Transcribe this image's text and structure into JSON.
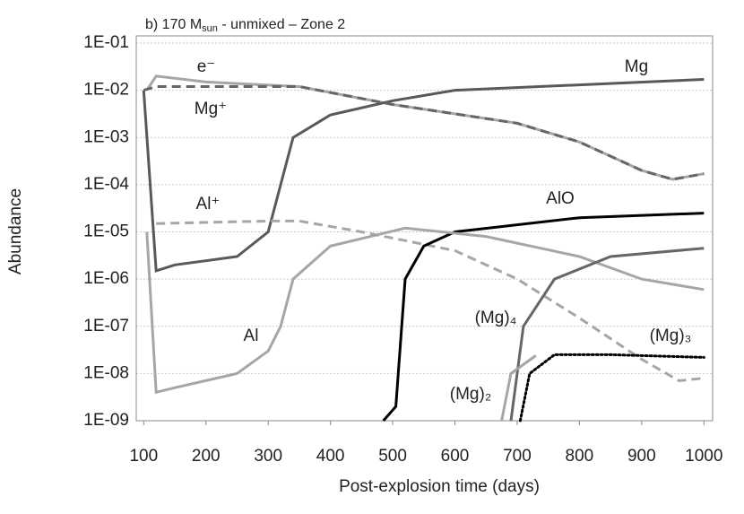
{
  "chart_data": {
    "type": "line",
    "log_y": true,
    "grid": true,
    "title": "b) 170 M",
    "title_sub": "sun",
    "title_rest": " - unmixed – Zone 2",
    "xlabel": "Post-explosion time (days)",
    "ylabel": "Abundance",
    "xlim": [
      88,
      1014
    ],
    "xticks": [
      100,
      200,
      300,
      400,
      500,
      600,
      700,
      800,
      900,
      1000
    ],
    "ylim": [
      1e-09,
      0.1
    ],
    "yticks": [
      {
        "value": 1e-09,
        "label": "1E-09"
      },
      {
        "value": 1e-08,
        "label": "1E-08"
      },
      {
        "value": 1e-07,
        "label": "1E-07"
      },
      {
        "value": 1e-06,
        "label": "1E-06"
      },
      {
        "value": 1e-05,
        "label": "1E-05"
      },
      {
        "value": 0.0001,
        "label": "1E-04"
      },
      {
        "value": 0.001,
        "label": "1E-03"
      },
      {
        "value": 0.01,
        "label": "1E-02"
      },
      {
        "value": 0.1,
        "label": "1E-01"
      }
    ],
    "series": [
      {
        "name": "e⁻",
        "color": "#a6a6a6",
        "dash": "solid",
        "x": [
          105,
          120,
          200,
          350,
          500,
          700,
          800,
          900,
          950,
          1000
        ],
        "values": [
          0.01,
          0.02,
          0.015,
          0.012,
          0.005,
          0.002,
          0.0008,
          0.0002,
          0.00013,
          0.00017
        ]
      },
      {
        "name": "Mg",
        "color": "#595959",
        "dash": "solid",
        "x": [
          100,
          120,
          150,
          250,
          300,
          320,
          340,
          400,
          500,
          600,
          800,
          1000
        ],
        "values": [
          0.01,
          1.5e-06,
          2e-06,
          3e-06,
          1e-05,
          0.0001,
          0.001,
          0.003,
          0.006,
          0.01,
          0.013,
          0.017
        ]
      },
      {
        "name": "Mg⁺",
        "color": "#666666",
        "dash": "dashed",
        "x": [
          100,
          120,
          350,
          500,
          700,
          800,
          900,
          950,
          1000
        ],
        "values": [
          0.01,
          0.012,
          0.012,
          0.005,
          0.002,
          0.0008,
          0.0002,
          0.00013,
          0.00017
        ]
      },
      {
        "name": "Al⁺",
        "color": "#a6a6a6",
        "dash": "dashed",
        "x": [
          120,
          300,
          350,
          450,
          600,
          700,
          800,
          900,
          960,
          1000
        ],
        "values": [
          1.5e-05,
          1.7e-05,
          1.7e-05,
          1e-05,
          4e-06,
          1e-06,
          1.5e-07,
          2e-08,
          7e-09,
          8e-09
        ]
      },
      {
        "name": "AlO",
        "color": "#000000",
        "dash": "solid",
        "x": [
          485,
          505,
          520,
          550,
          600,
          800,
          1000
        ],
        "values": [
          1e-09,
          2e-09,
          1e-06,
          5e-06,
          1e-05,
          2e-05,
          2.5e-05
        ]
      },
      {
        "name": "Al",
        "color": "#a6a6a6",
        "dash": "solid",
        "x": [
          105,
          120,
          150,
          250,
          300,
          320,
          340,
          400,
          520,
          650,
          800,
          900,
          1000
        ],
        "values": [
          1e-05,
          4e-09,
          5e-09,
          1e-08,
          3e-08,
          1e-07,
          1e-06,
          5e-06,
          1.2e-05,
          8e-06,
          3e-06,
          1e-06,
          6e-07
        ]
      },
      {
        "name": "(Mg)₄",
        "color": "#666666",
        "dash": "solid",
        "x": [
          690,
          710,
          760,
          850,
          1000
        ],
        "values": [
          1e-09,
          1e-07,
          1e-06,
          3e-06,
          4.5e-06
        ]
      },
      {
        "name": "(Mg)₃",
        "color": "#000000",
        "dash": "dotted",
        "x": [
          705,
          720,
          760,
          850,
          1000
        ],
        "values": [
          1e-09,
          1e-08,
          2.5e-08,
          2.5e-08,
          2.2e-08
        ]
      },
      {
        "name": "(Mg)₂",
        "color": "#a6a6a6",
        "dash": "solid",
        "x": [
          675,
          690,
          730
        ],
        "values": [
          1e-09,
          1e-08,
          2.4e-08
        ]
      }
    ]
  }
}
